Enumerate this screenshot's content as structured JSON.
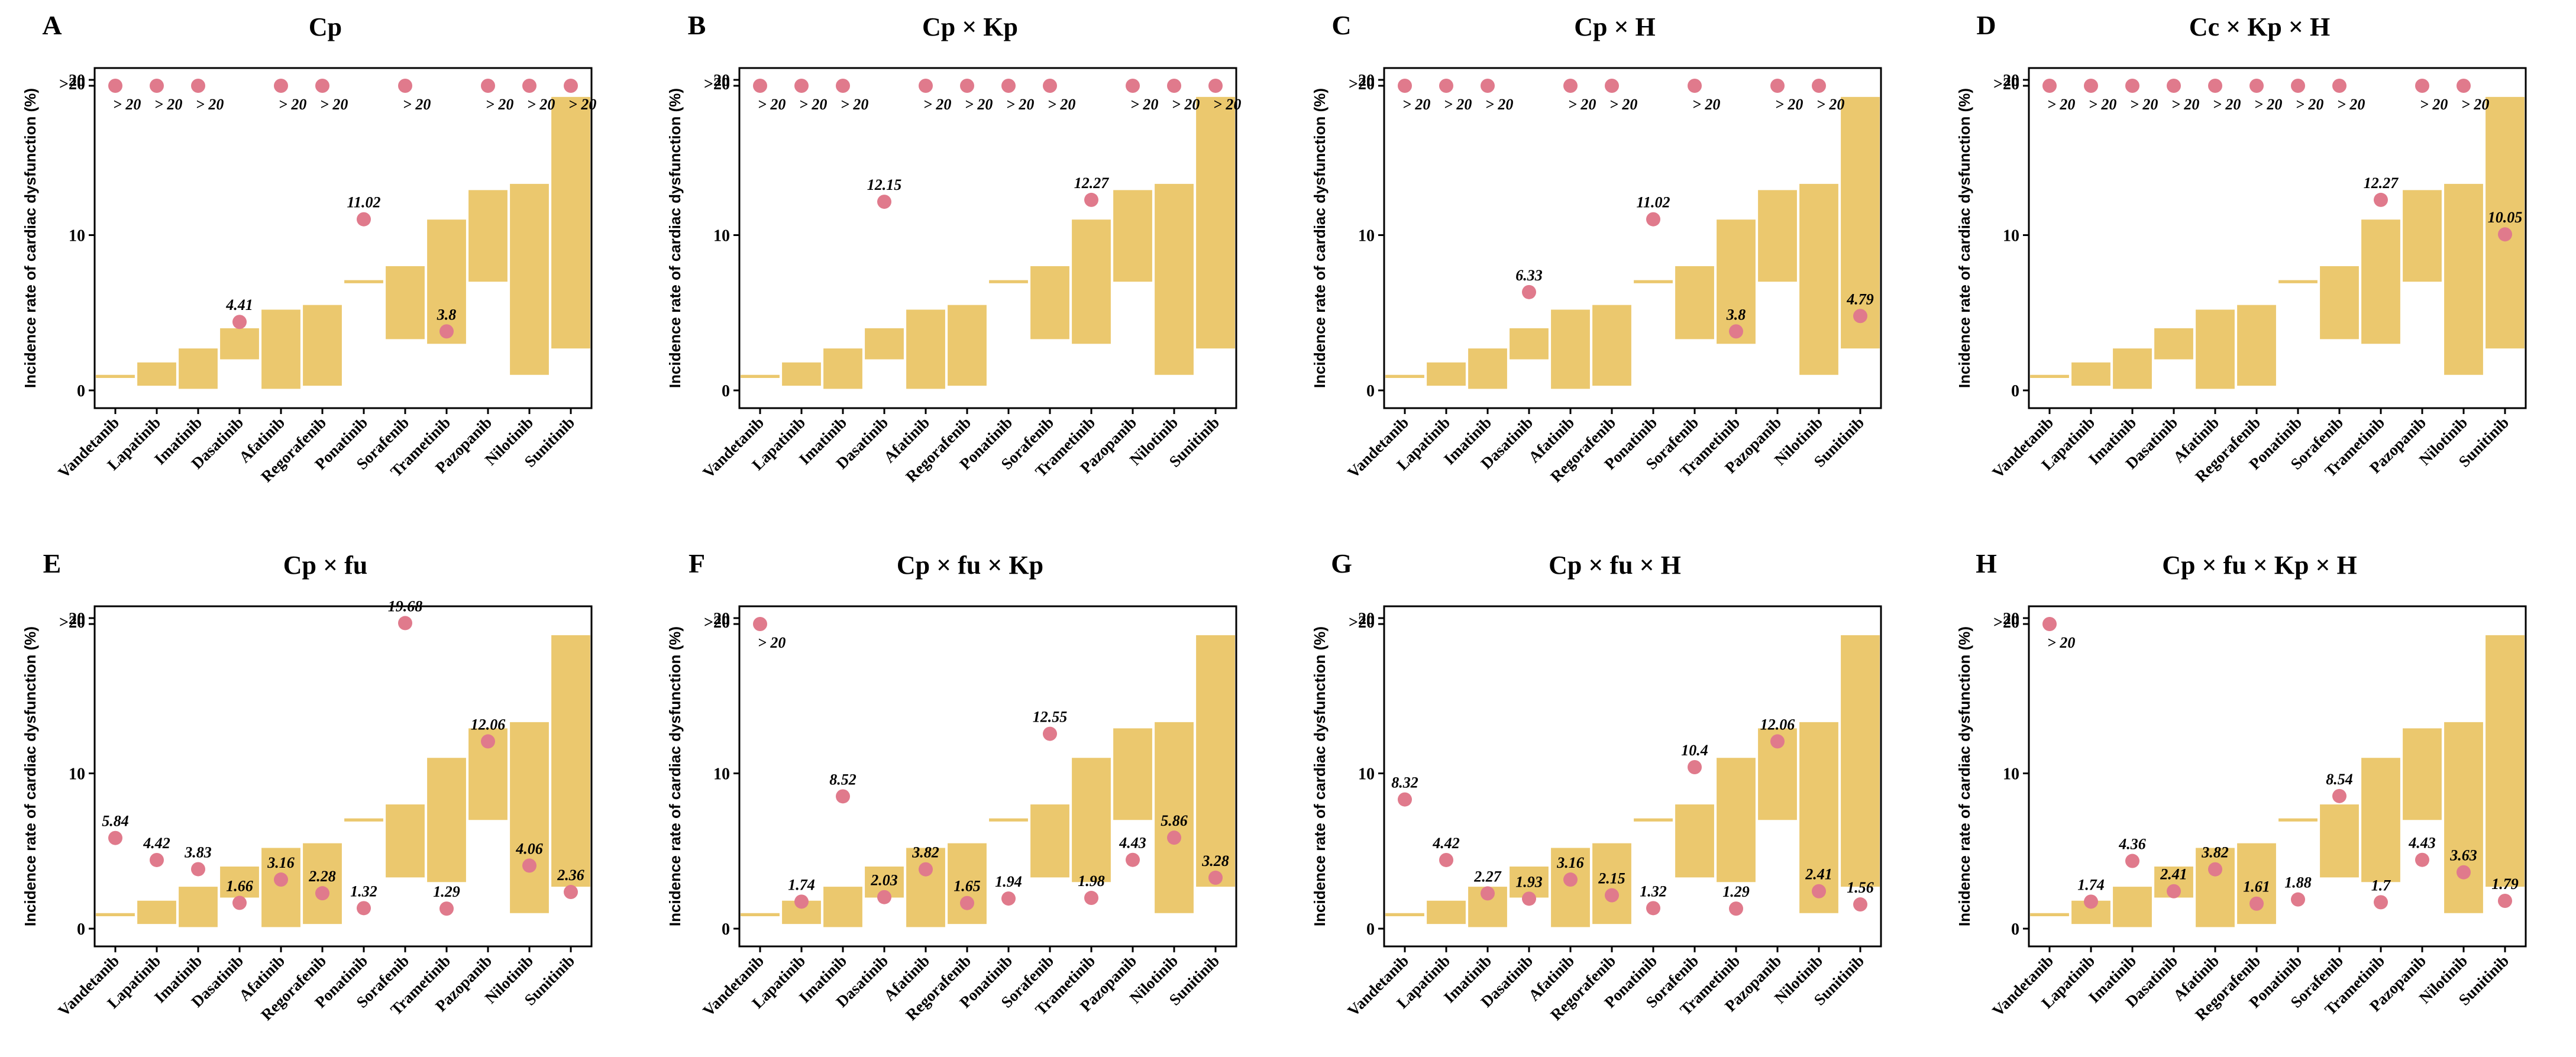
{
  "figure": {
    "y_axis_label": "Incidence rate of cardiac dysfunction (%)",
    "y_tick_labels": [
      "0",
      "10",
      "20",
      ">20"
    ]
  },
  "colors": {
    "bar": "#EBC86E",
    "point": "#E07A8C",
    "axis": "#000000"
  },
  "chart_data": [
    {
      "letter": "A",
      "title": "Cp",
      "type": "bar",
      "categories": [
        "Vandetanib",
        "Lapatinib",
        "Imatinib",
        "Dasatinib",
        "Afatinib",
        "Regorafenib",
        "Ponatinib",
        "Sorafenib",
        "Trametinib",
        "Pazopanib",
        "Nilotinib",
        "Sunitinib"
      ],
      "ranges": [
        [
          0.8,
          1.0
        ],
        [
          0.3,
          1.8
        ],
        [
          0.1,
          2.7
        ],
        [
          2.0,
          4.0
        ],
        [
          0.1,
          5.2
        ],
        [
          0.3,
          5.5
        ],
        [
          6.9,
          7.1
        ],
        [
          3.3,
          8.0
        ],
        [
          3.0,
          11.0
        ],
        [
          7.0,
          12.9
        ],
        [
          1.0,
          13.3
        ],
        [
          2.7,
          18.9
        ]
      ],
      "points": [
        ">20",
        ">20",
        ">20",
        "4.41",
        ">20",
        ">20",
        "11.02",
        ">20",
        "3.8",
        ">20",
        ">20",
        ">20"
      ],
      "xlabel": "",
      "ylabel": "Incidence rate of cardiac dysfunction (%)",
      "ylim": [
        0,
        20
      ]
    },
    {
      "letter": "B",
      "title": "Cp × Kp",
      "type": "bar",
      "categories": [
        "Vandetanib",
        "Lapatinib",
        "Imatinib",
        "Dasatinib",
        "Afatinib",
        "Regorafenib",
        "Ponatinib",
        "Sorafenib",
        "Trametinib",
        "Pazopanib",
        "Nilotinib",
        "Sunitinib"
      ],
      "ranges": [
        [
          0.8,
          1.0
        ],
        [
          0.3,
          1.8
        ],
        [
          0.1,
          2.7
        ],
        [
          2.0,
          4.0
        ],
        [
          0.1,
          5.2
        ],
        [
          0.3,
          5.5
        ],
        [
          6.9,
          7.1
        ],
        [
          3.3,
          8.0
        ],
        [
          3.0,
          11.0
        ],
        [
          7.0,
          12.9
        ],
        [
          1.0,
          13.3
        ],
        [
          2.7,
          18.9
        ]
      ],
      "points": [
        ">20",
        ">20",
        ">20",
        "12.15",
        ">20",
        ">20",
        ">20",
        ">20",
        "12.27",
        ">20",
        ">20",
        ">20"
      ],
      "xlabel": "",
      "ylabel": "Incidence rate of cardiac dysfunction (%)",
      "ylim": [
        0,
        20
      ]
    },
    {
      "letter": "C",
      "title": "Cp × H",
      "type": "bar",
      "categories": [
        "Vandetanib",
        "Lapatinib",
        "Imatinib",
        "Dasatinib",
        "Afatinib",
        "Regorafenib",
        "Ponatinib",
        "Sorafenib",
        "Trametinib",
        "Pazopanib",
        "Nilotinib",
        "Sunitinib"
      ],
      "ranges": [
        [
          0.8,
          1.0
        ],
        [
          0.3,
          1.8
        ],
        [
          0.1,
          2.7
        ],
        [
          2.0,
          4.0
        ],
        [
          0.1,
          5.2
        ],
        [
          0.3,
          5.5
        ],
        [
          6.9,
          7.1
        ],
        [
          3.3,
          8.0
        ],
        [
          3.0,
          11.0
        ],
        [
          7.0,
          12.9
        ],
        [
          1.0,
          13.3
        ],
        [
          2.7,
          18.9
        ]
      ],
      "points": [
        ">20",
        ">20",
        ">20",
        "6.33",
        ">20",
        ">20",
        "11.02",
        ">20",
        "3.8",
        ">20",
        ">20",
        "4.79"
      ],
      "xlabel": "",
      "ylabel": "Incidence rate of cardiac dysfunction (%)",
      "ylim": [
        0,
        20
      ]
    },
    {
      "letter": "D",
      "title": "Cc × Kp × H",
      "type": "bar",
      "categories": [
        "Vandetanib",
        "Lapatinib",
        "Imatinib",
        "Dasatinib",
        "Afatinib",
        "Regorafenib",
        "Ponatinib",
        "Sorafenib",
        "Trametinib",
        "Pazopanib",
        "Nilotinib",
        "Sunitinib"
      ],
      "ranges": [
        [
          0.8,
          1.0
        ],
        [
          0.3,
          1.8
        ],
        [
          0.1,
          2.7
        ],
        [
          2.0,
          4.0
        ],
        [
          0.1,
          5.2
        ],
        [
          0.3,
          5.5
        ],
        [
          6.9,
          7.1
        ],
        [
          3.3,
          8.0
        ],
        [
          3.0,
          11.0
        ],
        [
          7.0,
          12.9
        ],
        [
          1.0,
          13.3
        ],
        [
          2.7,
          18.9
        ]
      ],
      "points": [
        ">20",
        ">20",
        ">20",
        ">20",
        ">20",
        ">20",
        ">20",
        ">20",
        "12.27",
        ">20",
        ">20",
        "10.05"
      ],
      "xlabel": "",
      "ylabel": "Incidence rate of cardiac dysfunction (%)",
      "ylim": [
        0,
        20
      ]
    },
    {
      "letter": "E",
      "title": "Cp × fu",
      "type": "bar",
      "categories": [
        "Vandetanib",
        "Lapatinib",
        "Imatinib",
        "Dasatinib",
        "Afatinib",
        "Regorafenib",
        "Ponatinib",
        "Sorafenib",
        "Trametinib",
        "Pazopanib",
        "Nilotinib",
        "Sunitinib"
      ],
      "ranges": [
        [
          0.8,
          1.0
        ],
        [
          0.3,
          1.8
        ],
        [
          0.1,
          2.7
        ],
        [
          2.0,
          4.0
        ],
        [
          0.1,
          5.2
        ],
        [
          0.3,
          5.5
        ],
        [
          6.9,
          7.1
        ],
        [
          3.3,
          8.0
        ],
        [
          3.0,
          11.0
        ],
        [
          7.0,
          12.9
        ],
        [
          1.0,
          13.3
        ],
        [
          2.7,
          18.9
        ]
      ],
      "points": [
        "5.84",
        "4.42",
        "3.83",
        "1.66",
        "3.16",
        "2.28",
        "1.32",
        "19.68",
        "1.29",
        "12.06",
        "4.06",
        "2.36"
      ],
      "xlabel": "",
      "ylabel": "Incidence rate of cardiac dysfunction (%)",
      "ylim": [
        0,
        20
      ]
    },
    {
      "letter": "F",
      "title": "Cp × fu × Kp",
      "type": "bar",
      "categories": [
        "Vandetanib",
        "Lapatinib",
        "Imatinib",
        "Dasatinib",
        "Afatinib",
        "Regorafenib",
        "Ponatinib",
        "Sorafenib",
        "Trametinib",
        "Pazopanib",
        "Nilotinib",
        "Sunitinib"
      ],
      "ranges": [
        [
          0.8,
          1.0
        ],
        [
          0.3,
          1.8
        ],
        [
          0.1,
          2.7
        ],
        [
          2.0,
          4.0
        ],
        [
          0.1,
          5.2
        ],
        [
          0.3,
          5.5
        ],
        [
          6.9,
          7.1
        ],
        [
          3.3,
          8.0
        ],
        [
          3.0,
          11.0
        ],
        [
          7.0,
          12.9
        ],
        [
          1.0,
          13.3
        ],
        [
          2.7,
          18.9
        ]
      ],
      "points": [
        ">20",
        "1.74",
        "8.52",
        "2.03",
        "3.82",
        "1.65",
        "1.94",
        "12.55",
        "1.98",
        "4.43",
        "5.86",
        "3.28"
      ],
      "xlabel": "",
      "ylabel": "Incidence rate of cardiac dysfunction (%)",
      "ylim": [
        0,
        20
      ]
    },
    {
      "letter": "G",
      "title": "Cp × fu × H",
      "type": "bar",
      "categories": [
        "Vandetanib",
        "Lapatinib",
        "Imatinib",
        "Dasatinib",
        "Afatinib",
        "Regorafenib",
        "Ponatinib",
        "Sorafenib",
        "Trametinib",
        "Pazopanib",
        "Nilotinib",
        "Sunitinib"
      ],
      "ranges": [
        [
          0.8,
          1.0
        ],
        [
          0.3,
          1.8
        ],
        [
          0.1,
          2.7
        ],
        [
          2.0,
          4.0
        ],
        [
          0.1,
          5.2
        ],
        [
          0.3,
          5.5
        ],
        [
          6.9,
          7.1
        ],
        [
          3.3,
          8.0
        ],
        [
          3.0,
          11.0
        ],
        [
          7.0,
          12.9
        ],
        [
          1.0,
          13.3
        ],
        [
          2.7,
          18.9
        ]
      ],
      "points": [
        "8.32",
        "4.42",
        "2.27",
        "1.93",
        "3.16",
        "2.15",
        "1.32",
        "10.4",
        "1.29",
        "12.06",
        "2.41",
        "1.56"
      ],
      "xlabel": "",
      "ylabel": "Incidence rate of cardiac dysfunction (%)",
      "ylim": [
        0,
        20
      ]
    },
    {
      "letter": "H",
      "title": "Cp × fu × Kp × H",
      "type": "bar",
      "categories": [
        "Vandetanib",
        "Lapatinib",
        "Imatinib",
        "Dasatinib",
        "Afatinib",
        "Regorafenib",
        "Ponatinib",
        "Sorafenib",
        "Trametinib",
        "Pazopanib",
        "Nilotinib",
        "Sunitinib"
      ],
      "ranges": [
        [
          0.8,
          1.0
        ],
        [
          0.3,
          1.8
        ],
        [
          0.1,
          2.7
        ],
        [
          2.0,
          4.0
        ],
        [
          0.1,
          5.2
        ],
        [
          0.3,
          5.5
        ],
        [
          6.9,
          7.1
        ],
        [
          3.3,
          8.0
        ],
        [
          3.0,
          11.0
        ],
        [
          7.0,
          12.9
        ],
        [
          1.0,
          13.3
        ],
        [
          2.7,
          18.9
        ]
      ],
      "points": [
        ">20",
        "1.74",
        "4.36",
        "2.41",
        "3.82",
        "1.61",
        "1.88",
        "8.54",
        "1.7",
        "4.43",
        "3.63",
        "1.79"
      ],
      "xlabel": "",
      "ylabel": "Incidence rate of cardiac dysfunction (%)",
      "ylim": [
        0,
        20
      ]
    }
  ]
}
